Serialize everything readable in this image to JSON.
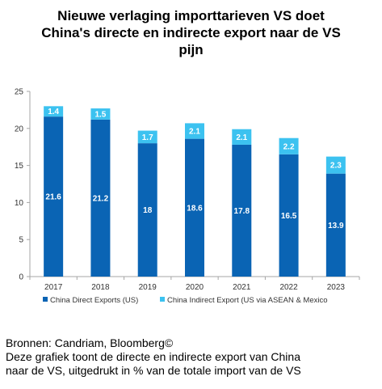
{
  "chart_data": {
    "type": "bar",
    "stacked": true,
    "title": "Nieuwe verlaging importtarieven VS doet\nChina's directe en indirecte export naar de VS\npijn",
    "categories": [
      "2017",
      "2018",
      "2019",
      "2020",
      "2021",
      "2022",
      "2023"
    ],
    "series": [
      {
        "name": "China Direct Exports (US)",
        "values": [
          21.6,
          21.2,
          18,
          18.6,
          17.8,
          16.5,
          13.9
        ],
        "labels": [
          "21.6",
          "21.2",
          "18",
          "18.6",
          "17.8",
          "16.5",
          "13.9"
        ],
        "color": "#0a64b4"
      },
      {
        "name": "China Indirect Export (US via ASEAN & Mexico",
        "values": [
          1.4,
          1.5,
          1.7,
          2.1,
          2.1,
          2.2,
          2.3
        ],
        "labels": [
          "1.4",
          "1.5",
          "1.7",
          "2.1",
          "2.1",
          "2.2",
          "2.3"
        ],
        "color": "#3cc2f0"
      }
    ],
    "yticks": [
      "0",
      "5",
      "10",
      "15",
      "20",
      "25"
    ],
    "ylim": [
      0,
      25
    ],
    "grid": false,
    "legend": "bottom"
  },
  "footer": {
    "source": "Bronnen: Candriam, Bloomberg©",
    "note_line1": "Deze grafiek toont de directe en indirecte export van China",
    "note_line2": "naar de VS, uitgedrukt in % van de totale import van de VS"
  }
}
